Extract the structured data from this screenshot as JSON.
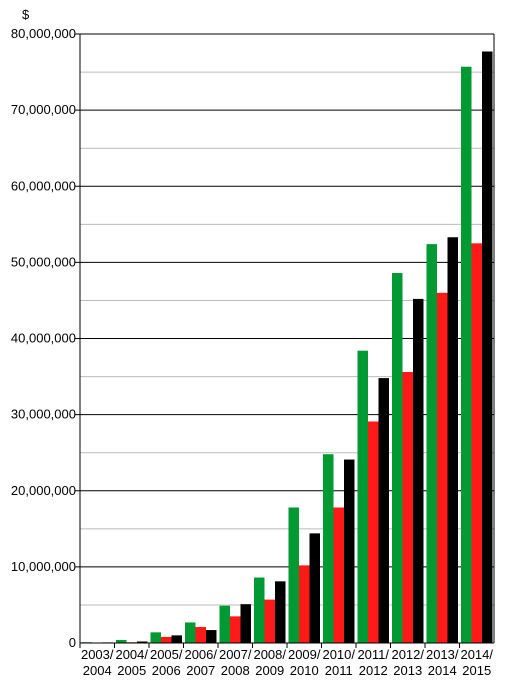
{
  "chart_data": {
    "type": "bar",
    "title": "",
    "xlabel": "",
    "ylabel": "$",
    "ylim": [
      0,
      80000000
    ],
    "yticks": [
      "0",
      "10,000,000",
      "20,000,000",
      "30,000,000",
      "40,000,000",
      "50,000,000",
      "60,000,000",
      "70,000,000",
      "80,000,000"
    ],
    "ytick_values": [
      0,
      10000000,
      20000000,
      30000000,
      40000000,
      50000000,
      60000000,
      70000000,
      80000000
    ],
    "grid": true,
    "legend": "none",
    "categories": [
      [
        "2003/",
        "2004"
      ],
      [
        "2004/",
        "2005"
      ],
      [
        "2005/",
        "2006"
      ],
      [
        "2006/",
        "2007"
      ],
      [
        "2007/",
        "2008"
      ],
      [
        "2008/",
        "2009"
      ],
      [
        "2009/",
        "2010"
      ],
      [
        "2010/",
        "2011"
      ],
      [
        "2011/",
        "2012"
      ],
      [
        "2012/",
        "2013"
      ],
      [
        "2013/",
        "2014"
      ],
      [
        "2014/",
        "2015"
      ]
    ],
    "series": [
      {
        "color": "#009933",
        "values": [
          100000,
          400000,
          1400000,
          2700000,
          4900000,
          8600000,
          17800000,
          24800000,
          38400000,
          48600000,
          52400000,
          75700000
        ]
      },
      {
        "color": "#ff1a1a",
        "values": [
          50000,
          100000,
          800000,
          2100000,
          3500000,
          5700000,
          10200000,
          17800000,
          29100000,
          35600000,
          46000000,
          52500000
        ]
      },
      {
        "color": "#000000",
        "values": [
          80000,
          200000,
          1000000,
          1700000,
          5100000,
          8100000,
          14400000,
          24100000,
          34800000,
          45200000,
          53300000,
          77700000
        ]
      }
    ]
  }
}
